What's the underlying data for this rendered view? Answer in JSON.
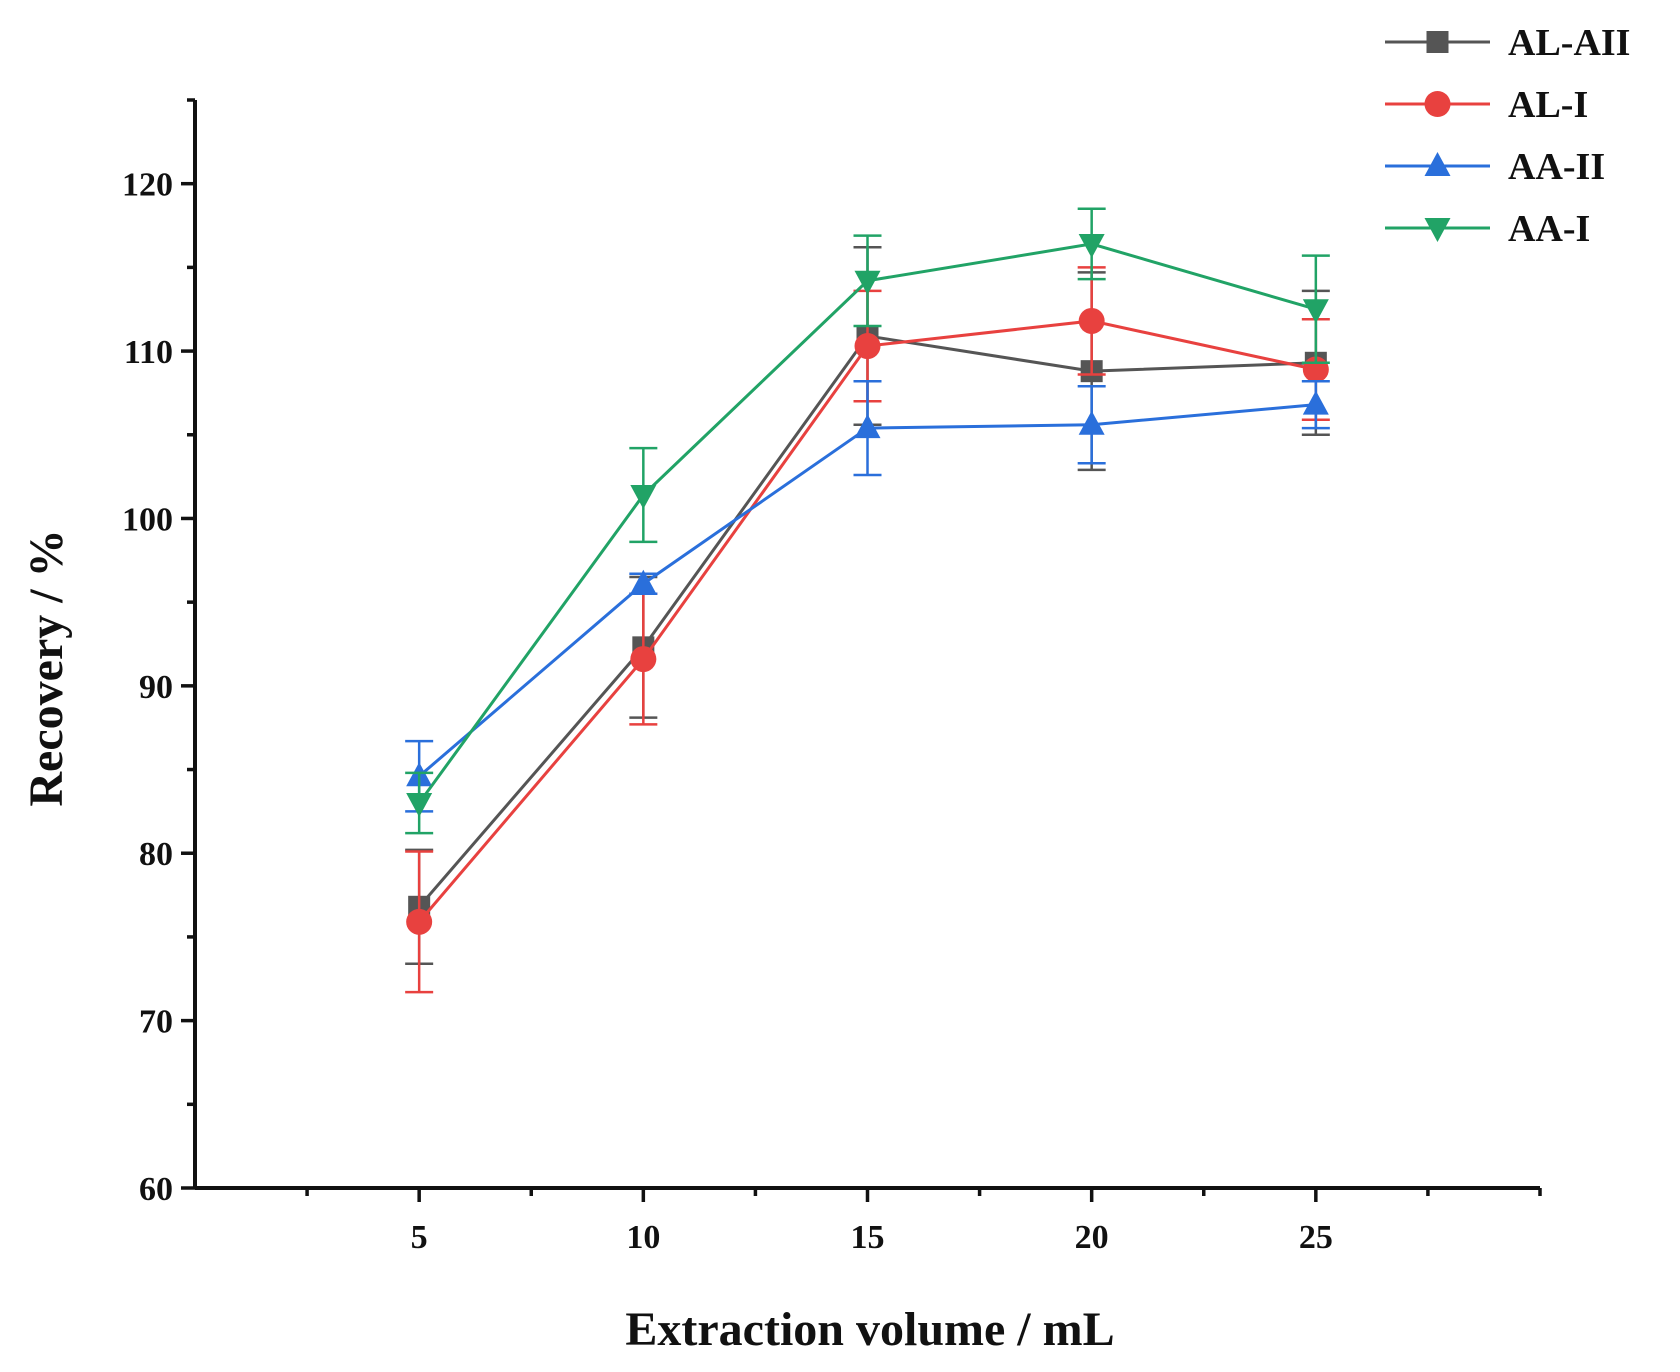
{
  "chart_data": {
    "type": "line",
    "title": "",
    "xlabel": "Extraction volume / mL",
    "ylabel": "Recovery / %",
    "x": [
      5,
      10,
      15,
      20,
      25
    ],
    "xlim": [
      0,
      30
    ],
    "ylim": [
      60,
      125
    ],
    "xticks": [
      5,
      10,
      15,
      20,
      25
    ],
    "yticks": [
      60,
      70,
      80,
      90,
      100,
      110,
      120
    ],
    "legend_position": "top-right",
    "series": [
      {
        "name": "AL-AII",
        "color": "#555555",
        "marker": "square",
        "values": [
          76.8,
          92.3,
          110.9,
          108.8,
          109.3
        ],
        "errors": [
          3.4,
          4.2,
          5.3,
          5.9,
          4.3
        ]
      },
      {
        "name": "AL-I",
        "color": "#e8413f",
        "marker": "circle",
        "values": [
          75.9,
          91.6,
          110.3,
          111.8,
          108.9
        ],
        "errors": [
          4.2,
          3.9,
          3.3,
          3.2,
          3.0
        ]
      },
      {
        "name": "AA-II",
        "color": "#2a6fdb",
        "marker": "triangle-up",
        "values": [
          84.6,
          96.1,
          105.4,
          105.6,
          106.8
        ],
        "errors": [
          2.1,
          0.6,
          2.8,
          2.3,
          1.4
        ]
      },
      {
        "name": "AA-I",
        "color": "#21a366",
        "marker": "triangle-down",
        "values": [
          83.0,
          101.4,
          114.2,
          116.4,
          112.5
        ],
        "errors": [
          1.8,
          2.8,
          2.7,
          2.1,
          3.2
        ]
      }
    ]
  }
}
